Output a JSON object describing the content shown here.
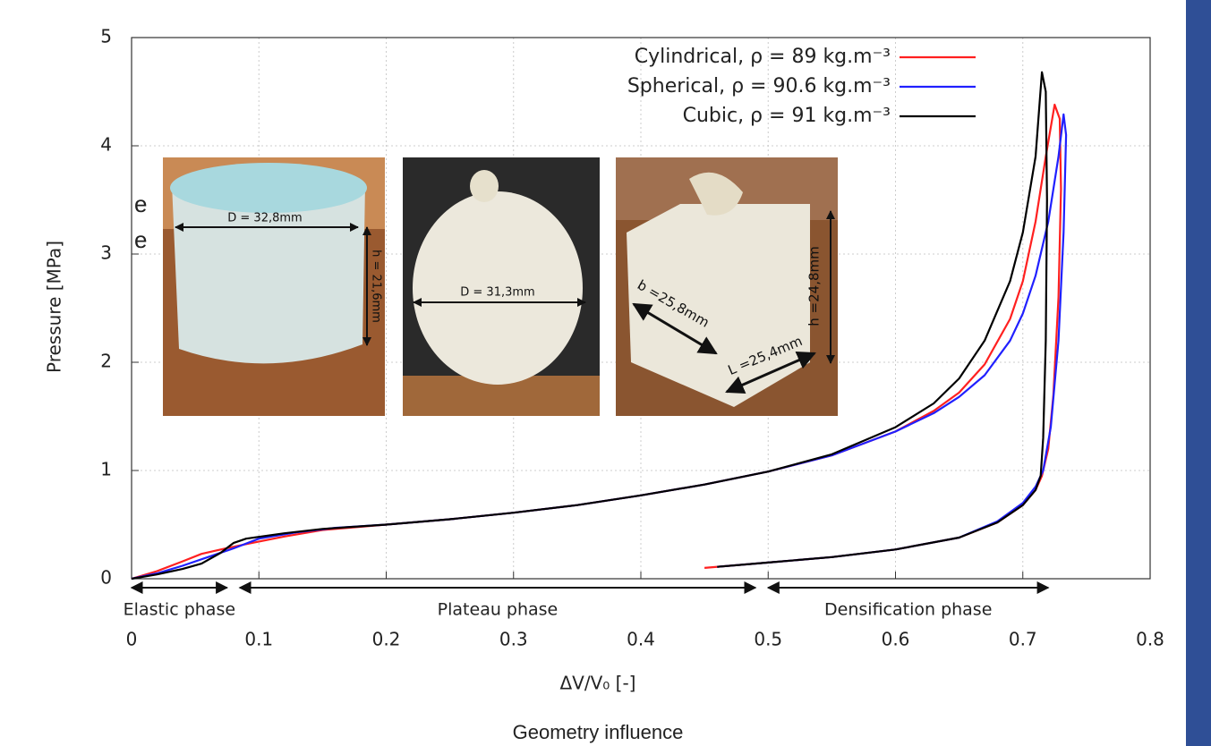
{
  "chart_data": {
    "type": "line",
    "caption": "Geometry influence",
    "side_text": [
      "e",
      "e"
    ],
    "xlabel": "ΔV/V₀ [-]",
    "ylabel": "Pressure [MPa]",
    "xlim": [
      0,
      0.8
    ],
    "xticks": [
      0,
      0.1,
      0.2,
      0.3,
      0.4,
      0.5,
      0.6,
      0.7,
      0.8
    ],
    "ylim": [
      0,
      5
    ],
    "yticks": [
      0,
      1,
      2,
      3,
      4,
      5
    ],
    "grid": true,
    "legend": "upper right",
    "series": [
      {
        "name": "Cylindrical, ρ = 89 kg.m⁻³",
        "color": "#ff2020",
        "x": [
          0,
          0.02,
          0.04,
          0.055,
          0.07,
          0.09,
          0.12,
          0.15,
          0.2,
          0.25,
          0.3,
          0.35,
          0.4,
          0.45,
          0.5,
          0.55,
          0.6,
          0.63,
          0.65,
          0.67,
          0.69,
          0.7,
          0.71,
          0.718,
          0.725,
          0.729,
          0.73,
          0.728,
          0.724,
          0.72,
          0.715,
          0.71,
          0.7,
          0.68,
          0.65,
          0.6,
          0.55,
          0.5,
          0.45
        ],
        "values": [
          0,
          0.07,
          0.16,
          0.23,
          0.27,
          0.32,
          0.39,
          0.45,
          0.5,
          0.55,
          0.61,
          0.68,
          0.77,
          0.87,
          0.99,
          1.14,
          1.36,
          1.55,
          1.72,
          1.98,
          2.4,
          2.75,
          3.3,
          3.9,
          4.38,
          4.25,
          3.6,
          2.6,
          1.7,
          1.2,
          0.95,
          0.82,
          0.68,
          0.52,
          0.38,
          0.27,
          0.2,
          0.15,
          0.1
        ]
      },
      {
        "name": "Spherical, ρ = 90.6 kg.m⁻³",
        "color": "#2020ff",
        "x": [
          0,
          0.02,
          0.04,
          0.06,
          0.08,
          0.1,
          0.13,
          0.16,
          0.2,
          0.25,
          0.3,
          0.35,
          0.4,
          0.45,
          0.5,
          0.55,
          0.6,
          0.63,
          0.65,
          0.67,
          0.69,
          0.7,
          0.71,
          0.72,
          0.728,
          0.732,
          0.734,
          0.732,
          0.728,
          0.722,
          0.716,
          0.71,
          0.7,
          0.68,
          0.65,
          0.6,
          0.55,
          0.5,
          0.46
        ],
        "values": [
          0,
          0.05,
          0.12,
          0.2,
          0.28,
          0.37,
          0.43,
          0.47,
          0.5,
          0.55,
          0.61,
          0.68,
          0.77,
          0.87,
          0.99,
          1.14,
          1.36,
          1.53,
          1.68,
          1.88,
          2.2,
          2.45,
          2.8,
          3.3,
          3.9,
          4.29,
          4.1,
          3.2,
          2.2,
          1.4,
          1.0,
          0.85,
          0.7,
          0.53,
          0.38,
          0.27,
          0.2,
          0.15,
          0.11
        ]
      },
      {
        "name": "Cubic, ρ = 91 kg.m⁻³",
        "color": "#000000",
        "x": [
          0,
          0.02,
          0.04,
          0.055,
          0.07,
          0.08,
          0.09,
          0.12,
          0.15,
          0.2,
          0.25,
          0.3,
          0.35,
          0.4,
          0.45,
          0.5,
          0.55,
          0.6,
          0.63,
          0.65,
          0.67,
          0.69,
          0.7,
          0.71,
          0.715,
          0.718,
          0.719,
          0.718,
          0.716,
          0.714,
          0.71,
          0.7,
          0.68,
          0.65,
          0.6,
          0.55,
          0.5,
          0.46
        ],
        "values": [
          0,
          0.04,
          0.09,
          0.14,
          0.24,
          0.33,
          0.37,
          0.42,
          0.46,
          0.5,
          0.55,
          0.61,
          0.68,
          0.77,
          0.87,
          0.99,
          1.15,
          1.4,
          1.62,
          1.85,
          2.2,
          2.75,
          3.2,
          3.9,
          4.68,
          4.5,
          3.5,
          2.2,
          1.3,
          0.95,
          0.82,
          0.68,
          0.52,
          0.38,
          0.27,
          0.2,
          0.15,
          0.11
        ]
      }
    ],
    "phases": [
      {
        "label": "Elastic phase",
        "start": 0,
        "end": 0.075
      },
      {
        "label": "Plateau phase",
        "start": 0.085,
        "end": 0.49
      },
      {
        "label": "Densification phase",
        "start": 0.5,
        "end": 0.72
      }
    ],
    "insets": [
      {
        "labels": [
          "D = 32,8mm",
          "h = 21,6mm"
        ]
      },
      {
        "labels": [
          "D = 31,3mm"
        ]
      },
      {
        "labels": [
          "b =25,8mm",
          "L =25,4mm",
          "h =24,8mm"
        ]
      }
    ]
  }
}
